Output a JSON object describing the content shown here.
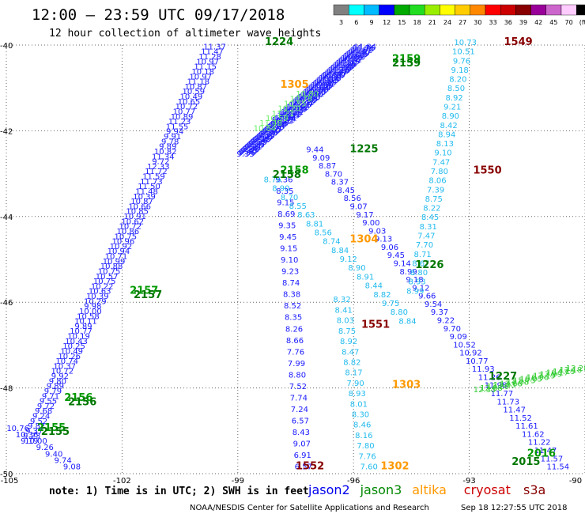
{
  "title": "12:00 – 23:59 UTC 09/17/2018",
  "subtitle": "12 hour collection of altimeter wave heights",
  "note": "note: 1) Time is in UTC; 2) SWH is in feet",
  "footer_left": "NOAA/NESDIS Center for Satellite Applications and Research",
  "footer_right": "Sep 18 12:27:55 UTC 2018",
  "satellites": [
    {
      "name": "jason2",
      "color": "#0000ee"
    },
    {
      "name": "jason3",
      "color": "#008800"
    },
    {
      "name": "altika",
      "color": "#ff9900"
    },
    {
      "name": "cryosat",
      "color": "#cc0000"
    },
    {
      "name": "s3a",
      "color": "#880000"
    }
  ],
  "colorbar": {
    "colors": [
      "#808080",
      "#00ffff",
      "#00bbff",
      "#0000ff",
      "#00aa00",
      "#22dd22",
      "#99ee00",
      "#ffff00",
      "#ffcc00",
      "#ff8800",
      "#ff0000",
      "#cc0000",
      "#880000",
      "#990099",
      "#cc66cc",
      "#ffccff",
      "#000000"
    ],
    "labels": [
      "3",
      "6",
      "9",
      "12",
      "15",
      "18",
      "21",
      "24",
      "27",
      "30",
      "33",
      "36",
      "39",
      "42",
      "45",
      "70",
      "(ft)"
    ]
  },
  "chart_data": {
    "type": "scatter",
    "xlim": [
      -105,
      -90
    ],
    "ylim": [
      -50,
      -40
    ],
    "x_ticks": [
      -105,
      -102,
      -99,
      -96,
      -93,
      -90
    ],
    "y_ticks": [
      -40,
      -42,
      -44,
      -46,
      -48,
      -50
    ],
    "grid": true,
    "tracks": [
      {
        "id": "A",
        "color": "#1a1aff",
        "values": [
          "11.37",
          "11.47",
          "11.28",
          "10.97",
          "11.15",
          "10.18",
          "10.97",
          "11.18",
          "10.87",
          "10.59",
          "10.49",
          "10.65",
          "10.72",
          "10.77",
          "10.89",
          "11.23",
          "11.55",
          "9.94",
          "9.91",
          "9.78",
          "9.89",
          "10.82",
          "11.34",
          "9.72",
          "12.33",
          "11.72",
          "11.59",
          "11.73",
          "11.50",
          "11.48",
          "10.39",
          "10.87",
          "10.66",
          "10.85",
          "10.91",
          "10.62",
          "10.72",
          "10.86",
          "10.75",
          "10.96",
          "10.92",
          "10.94",
          "10.71",
          "10.99",
          "10.88",
          "10.75",
          "10.57",
          "10.75",
          "10.22",
          "10.63",
          "10.39",
          "10.29",
          "9.98",
          "10.00",
          "10.58",
          "10.11",
          "9.89",
          "10.77",
          "10.19",
          "10.43",
          "10.25",
          "10.49",
          "10.26",
          "10.74",
          "10.37",
          "10.72",
          "9.92",
          "9.80",
          "9.89",
          "9.79",
          "9.71",
          "9.55",
          "9.72",
          "9.68",
          "9.24",
          "9.52",
          "9.82",
          "9.37",
          "9.23",
          "9.19"
        ],
        "start": [
          -99.6,
          -40.1
        ],
        "end": [
          -104.4,
          -49.3
        ]
      },
      {
        "id": "B",
        "color": "#1a1aff",
        "values": [
          "11.84",
          "11.76",
          "11.70",
          "11.52",
          "11.37",
          "11.40",
          "11.25",
          "11.13",
          "10.92",
          "10.82",
          "10.87",
          "10.62",
          "11.14",
          "11.35",
          "11.07",
          "11.26",
          "11.49",
          "11.28",
          "11.59",
          "11.09",
          "11.23",
          "11.49",
          "10.77",
          "10.47",
          "11.20",
          "10.56",
          "10.37",
          "10.88",
          "11.14",
          "11.05",
          "10.84",
          "10.85",
          "10.92",
          "10.99",
          "11.03",
          "11.24",
          "10.94",
          "10.80",
          "10.73",
          "10.66",
          "10.61",
          "10.50",
          "10.67",
          "10.63",
          "10.51",
          "10.63",
          "10.38",
          "10.35",
          "10.41",
          "10.14",
          "10.45",
          "10.44",
          "10.42",
          "10.06",
          "10.20",
          "10.37",
          "10.11",
          "10.28",
          "10.32",
          "10.05",
          "9.97",
          "10.31",
          "10.04",
          "10.01",
          "10.22",
          "9.89",
          "9.96",
          "9.90",
          "9.94",
          "9.78",
          "9.61",
          "9.65",
          "9.70",
          "9.55",
          "9.36",
          "9.27",
          "9.35",
          "9.25",
          "9.19",
          "9.15",
          "9.22",
          "9.27",
          "9.29",
          "9.27",
          "9.26",
          "9.20",
          "9.21",
          "9.35",
          "9.38",
          "9.33",
          "9.40",
          "9.36",
          "9.33"
        ],
        "start": [
          -95.7,
          -40.1
        ],
        "end": [
          -98.8,
          -42.6
        ]
      },
      {
        "id": "C",
        "color": "#1a1aff",
        "values": [
          "9.44",
          "9.09",
          "8.87",
          "8.70",
          "8.37",
          "8.45",
          "8.56",
          "9.07",
          "9.17",
          "9.00",
          "9.03",
          "9.13",
          "9.06",
          "9.45",
          "9.14",
          "8.99",
          "9.18",
          "9.12",
          "9.66",
          "9.54",
          "9.37",
          "9.22",
          "9.70",
          "9.09",
          "10.52",
          "10.92",
          "10.77",
          "11.93",
          "11.26",
          "11.98",
          "11.77",
          "11.73",
          "11.47",
          "11.52",
          "11.61",
          "11.62",
          "11.22",
          "11.47",
          "11.57",
          "11.54"
        ],
        "start": [
          -97.0,
          -42.5
        ],
        "end": [
          -90.7,
          -49.9
        ]
      },
      {
        "id": "D",
        "color": "#1a1aff",
        "values": [
          "10.76",
          "10.36",
          "10.00",
          "9.26",
          "9.40",
          "9.74",
          "9.08"
        ],
        "start": [
          -104.7,
          -49.0
        ],
        "end": [
          -103.3,
          -49.9
        ]
      },
      {
        "id": "E",
        "color": "#1a1aff",
        "values": [
          "9.36",
          "8.35",
          "9.15",
          "8.69",
          "9.35",
          "9.45",
          "9.15",
          "9.10",
          "9.23",
          "8.74",
          "8.38",
          "8.52",
          "8.35",
          "8.26",
          "8.66",
          "7.76",
          "7.99",
          "8.80",
          "7.52",
          "7.74",
          "7.24",
          "6.57",
          "8.43",
          "9.07",
          "6.91",
          "6.57"
        ],
        "start": [
          -97.8,
          -43.2
        ],
        "end": [
          -97.3,
          -49.9
        ]
      },
      {
        "id": "F",
        "color": "#22bbee",
        "values": [
          "10.73",
          "10.51",
          "9.76",
          "9.18",
          "8.20",
          "8.50",
          "8.92",
          "9.21",
          "8.90",
          "8.42",
          "8.94",
          "8.13",
          "9.10",
          "7.47",
          "7.80",
          "8.06",
          "7.39",
          "8.75",
          "8.22",
          "8.45",
          "8.31",
          "7.47",
          "7.70",
          "8.71",
          "8.67",
          "8.80",
          "8.93",
          "8.99"
        ],
        "start": [
          -93.1,
          -40.0
        ],
        "end": [
          -94.4,
          -45.8
        ]
      },
      {
        "id": "G",
        "color": "#22bbee",
        "values": [
          "8.32",
          "8.41",
          "8.03",
          "8.75",
          "8.92",
          "8.47",
          "8.82",
          "8.17",
          "7.90",
          "8.93",
          "8.01",
          "8.30",
          "8.46",
          "8.16",
          "7.80",
          "7.76",
          "7.60"
        ],
        "start": [
          -96.3,
          -46.0
        ],
        "end": [
          -95.6,
          -49.9
        ]
      },
      {
        "id": "H",
        "color": "#22bbee",
        "values": [
          "8.84",
          "8.80",
          "9.75",
          "8.82",
          "8.44",
          "8.91",
          "8.90",
          "9.12",
          "8.84",
          "8.74",
          "8.56",
          "8.81",
          "8.63",
          "8.55",
          "8.70",
          "8.90",
          "8.76"
        ],
        "start": [
          -94.6,
          -46.5
        ],
        "end": [
          -98.1,
          -43.2
        ]
      },
      {
        "id": "I",
        "color": "#33cc33",
        "values": [
          "12.35",
          "12.88",
          "13.20",
          "13.03",
          "13.66",
          "14.08",
          "15.75",
          "16.05",
          "16.96",
          "17.19",
          "17.99",
          "16.17",
          "14.19",
          "12.18",
          "12.28"
        ],
        "start": [
          -92.6,
          -48.1
        ],
        "end": [
          -90.2,
          -47.6
        ]
      },
      {
        "id": "J",
        "color": "#66ee66",
        "values": [
          "10.80",
          "10.78",
          "10.55",
          "10.20",
          "11.21",
          "10.59",
          "11.48",
          "10.84"
        ],
        "start": [
          -97.2,
          -41.2
        ],
        "end": [
          -98.3,
          -42.0
        ]
      }
    ],
    "time_labels": [
      {
        "text": "1224",
        "color": "#007700",
        "x": -98.3,
        "y": -40.0
      },
      {
        "text": "2159",
        "color": "#009900",
        "x": -95.0,
        "y": -40.4
      },
      {
        "text": "2159",
        "color": "#007700",
        "x": -95.0,
        "y": -40.5
      },
      {
        "text": "1549",
        "color": "#880000",
        "x": -92.1,
        "y": -40.0
      },
      {
        "text": "1305",
        "color": "#ff9900",
        "x": -97.9,
        "y": -41.0
      },
      {
        "text": "1225",
        "color": "#007700",
        "x": -96.1,
        "y": -42.5
      },
      {
        "text": "2158",
        "color": "#009900",
        "x": -97.9,
        "y": -43.0
      },
      {
        "text": "2158",
        "color": "#007700",
        "x": -98.1,
        "y": -43.1
      },
      {
        "text": "1550",
        "color": "#880000",
        "x": -92.9,
        "y": -43.0
      },
      {
        "text": "1304",
        "color": "#ff9900",
        "x": -96.1,
        "y": -44.6
      },
      {
        "text": "1226",
        "color": "#007700",
        "x": -94.4,
        "y": -45.2
      },
      {
        "text": "2157",
        "color": "#009900",
        "x": -101.8,
        "y": -45.8
      },
      {
        "text": "2157",
        "color": "#007700",
        "x": -101.7,
        "y": -45.9
      },
      {
        "text": "1551",
        "color": "#880000",
        "x": -95.8,
        "y": -46.6
      },
      {
        "text": "1227",
        "color": "#007700",
        "x": -92.5,
        "y": -47.8
      },
      {
        "text": "1303",
        "color": "#ff9900",
        "x": -95.0,
        "y": -48.0
      },
      {
        "text": "2156",
        "color": "#009900",
        "x": -103.5,
        "y": -48.3
      },
      {
        "text": "2156",
        "color": "#007700",
        "x": -103.4,
        "y": -48.4
      },
      {
        "text": "2155",
        "color": "#009900",
        "x": -104.2,
        "y": -49.0
      },
      {
        "text": "2155",
        "color": "#007700",
        "x": -104.1,
        "y": -49.1
      },
      {
        "text": "2016",
        "color": "#009900",
        "x": -91.5,
        "y": -49.6
      },
      {
        "text": "2015",
        "color": "#007700",
        "x": -91.9,
        "y": -49.8
      },
      {
        "text": "1552",
        "color": "#880000",
        "x": -97.5,
        "y": -49.9
      },
      {
        "text": "1302",
        "color": "#ff9900",
        "x": -95.3,
        "y": -49.9
      }
    ]
  }
}
